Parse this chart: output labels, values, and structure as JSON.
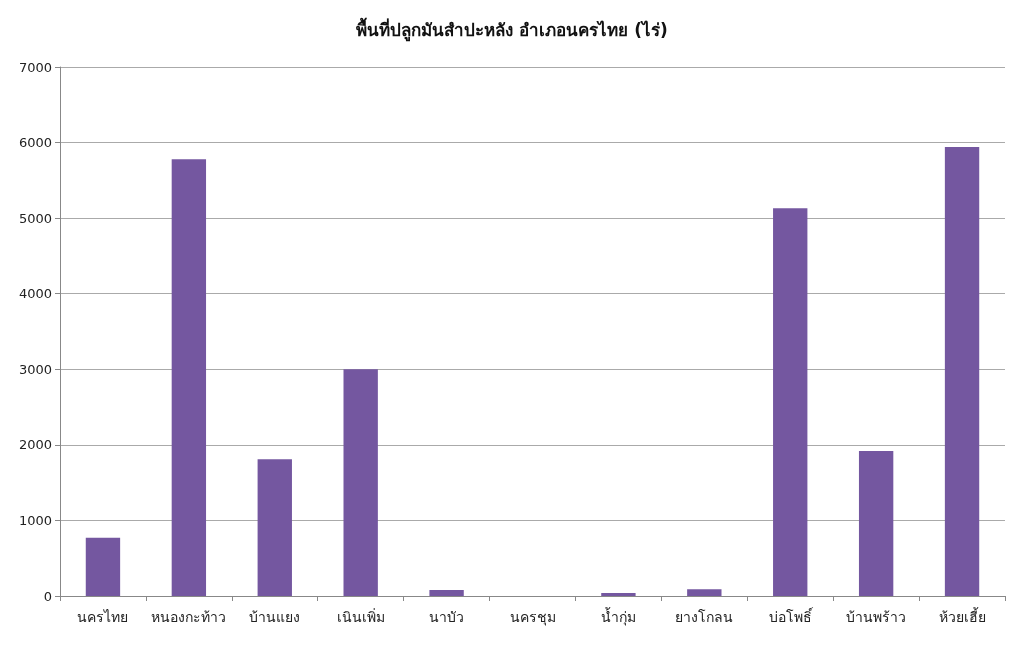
{
  "chart_data": {
    "type": "bar",
    "title": "พื้นที่ปลูกมันสำปะหลัง อำเภอนครไทย (ไร่)",
    "categories": [
      "นครไทย",
      "หนองกะท้าว",
      "บ้านแยง",
      "เนินเพิ่ม",
      "นาบัว",
      "นครชุม",
      "น้ำกุ่ม",
      "ยางโกลน",
      "บ่อโพธิ์",
      "บ้านพร้าว",
      "ห้วยเฮี้ย"
    ],
    "values": [
      770,
      5780,
      1810,
      3000,
      80,
      0,
      40,
      90,
      5130,
      1920,
      5940
    ],
    "color": "#7457a0",
    "ylim": [
      0,
      7000
    ],
    "yticks": [
      0,
      1000,
      2000,
      3000,
      4000,
      5000,
      6000,
      7000
    ],
    "grid": "y"
  }
}
